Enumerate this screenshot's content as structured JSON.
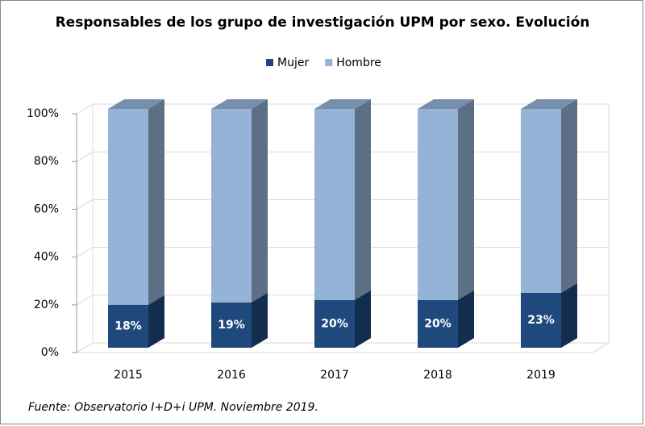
{
  "chart_data": {
    "type": "bar",
    "stacked": true,
    "title": "Responsables de los grupo de investigación UPM por sexo. Evolución",
    "categories": [
      "2015",
      "2016",
      "2017",
      "2018",
      "2019"
    ],
    "series": [
      {
        "name": "Mujer",
        "color": "#1f497d",
        "values": [
          18,
          19,
          20,
          20,
          23
        ],
        "value_labels": [
          "18%",
          "19%",
          "20%",
          "20%",
          "23%"
        ]
      },
      {
        "name": "Hombre",
        "color": "#95b3d7",
        "values": [
          82,
          81,
          80,
          80,
          77
        ]
      }
    ],
    "ylim": [
      0,
      100
    ],
    "yticks": [
      {
        "value": 0,
        "label": "0%"
      },
      {
        "value": 20,
        "label": "20%"
      },
      {
        "value": 40,
        "label": "40%"
      },
      {
        "value": 60,
        "label": "60%"
      },
      {
        "value": 80,
        "label": "80%"
      },
      {
        "value": 100,
        "label": "100%"
      }
    ],
    "grid": true,
    "legend": "top",
    "annotation": "Fuente: Observatorio I+D+i UPM. Noviembre 2019."
  }
}
